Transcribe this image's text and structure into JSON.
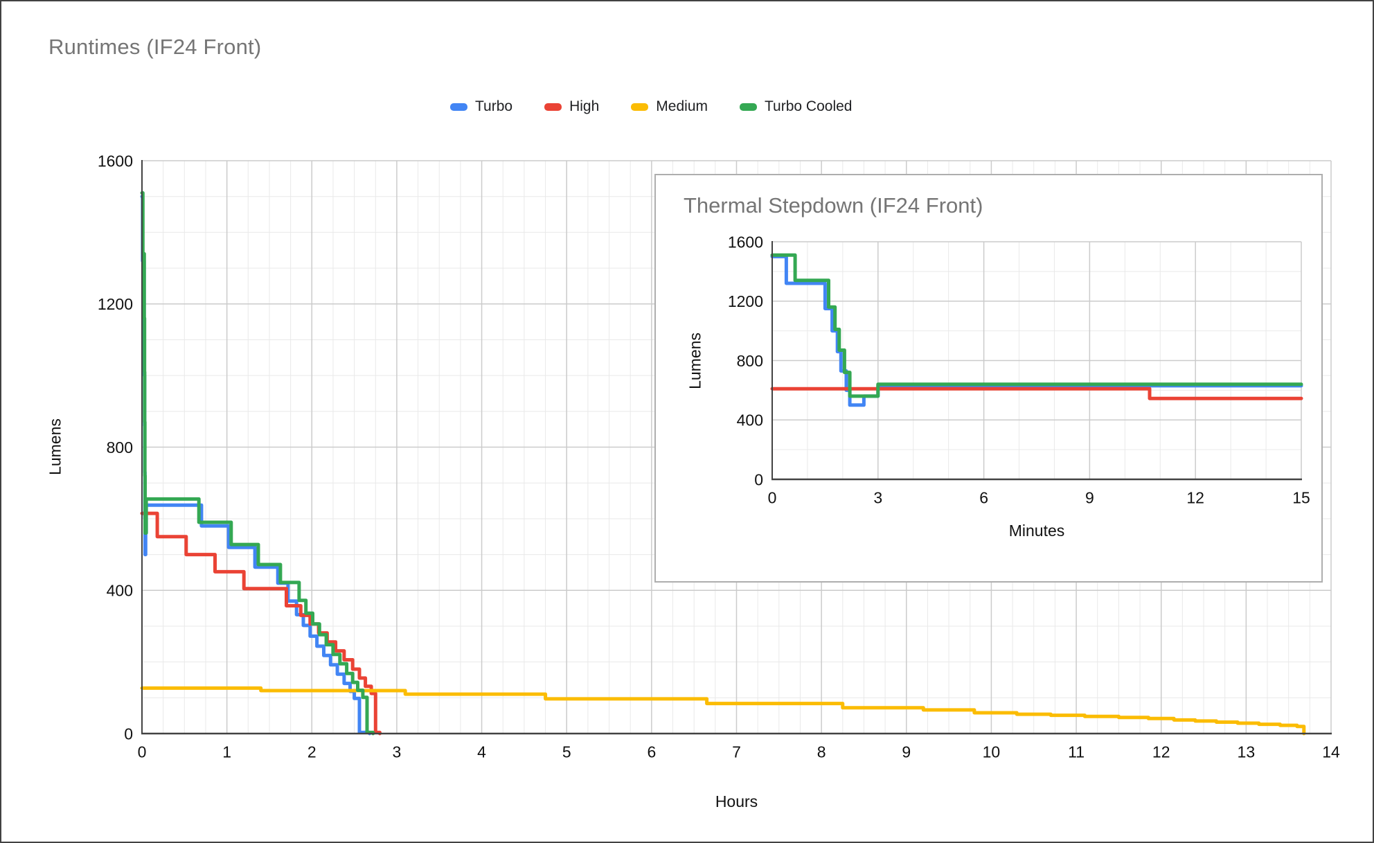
{
  "colors": {
    "turbo": "#4285F4",
    "high": "#EA4335",
    "medium": "#FBBC04",
    "turbo_cooled": "#34A853",
    "title_gray": "#757575",
    "grid_minor": "#e9e9e9",
    "grid_major": "#cbcbcb",
    "axis": "#424242"
  },
  "legend": {
    "items": [
      {
        "label": "Turbo",
        "color": "#4285F4"
      },
      {
        "label": "High",
        "color": "#EA4335"
      },
      {
        "label": "Medium",
        "color": "#FBBC04"
      },
      {
        "label": "Turbo Cooled",
        "color": "#34A853"
      }
    ]
  },
  "chart_data": [
    {
      "type": "line",
      "style": "step",
      "title": "Runtimes (IF24 Front)",
      "xlabel": "Hours",
      "ylabel": "Lumens",
      "xlim": [
        0,
        14
      ],
      "ylim": [
        0,
        1600
      ],
      "xticks": [
        0,
        1,
        2,
        3,
        4,
        5,
        6,
        7,
        8,
        9,
        10,
        11,
        12,
        13,
        14
      ],
      "yticks": [
        0,
        400,
        800,
        1200,
        1600
      ],
      "grid": {
        "x_minor": 0.25,
        "x_major": 1,
        "y_minor": 100,
        "y_major": 400
      },
      "legend_position": "top",
      "series": [
        {
          "name": "Turbo",
          "color": "#4285F4",
          "points": [
            [
              0,
              1500
            ],
            [
              0.007,
              1500
            ],
            [
              0.007,
              1320
            ],
            [
              0.025,
              1320
            ],
            [
              0.025,
              1150
            ],
            [
              0.028,
              1150
            ],
            [
              0.028,
              1000
            ],
            [
              0.031,
              1000
            ],
            [
              0.031,
              860
            ],
            [
              0.033,
              860
            ],
            [
              0.033,
              730
            ],
            [
              0.035,
              730
            ],
            [
              0.035,
              600
            ],
            [
              0.037,
              600
            ],
            [
              0.037,
              500
            ],
            [
              0.043,
              500
            ],
            [
              0.043,
              560
            ],
            [
              0.05,
              560
            ],
            [
              0.05,
              638
            ],
            [
              0.7,
              638
            ],
            [
              0.7,
              580
            ],
            [
              1.02,
              580
            ],
            [
              1.02,
              520
            ],
            [
              1.33,
              520
            ],
            [
              1.33,
              465
            ],
            [
              1.6,
              465
            ],
            [
              1.6,
              420
            ],
            [
              1.72,
              420
            ],
            [
              1.72,
              370
            ],
            [
              1.82,
              370
            ],
            [
              1.82,
              332
            ],
            [
              1.9,
              332
            ],
            [
              1.9,
              302
            ],
            [
              1.98,
              302
            ],
            [
              1.98,
              272
            ],
            [
              2.06,
              272
            ],
            [
              2.06,
              244
            ],
            [
              2.14,
              244
            ],
            [
              2.14,
              218
            ],
            [
              2.22,
              218
            ],
            [
              2.22,
              192
            ],
            [
              2.3,
              192
            ],
            [
              2.3,
              166
            ],
            [
              2.38,
              166
            ],
            [
              2.38,
              140
            ],
            [
              2.45,
              140
            ],
            [
              2.45,
              118
            ],
            [
              2.5,
              118
            ],
            [
              2.5,
              98
            ],
            [
              2.56,
              98
            ],
            [
              2.56,
              3
            ],
            [
              2.68,
              3
            ],
            [
              2.68,
              0
            ]
          ]
        },
        {
          "name": "High",
          "color": "#EA4335",
          "points": [
            [
              0,
              615
            ],
            [
              0.18,
              615
            ],
            [
              0.18,
              550
            ],
            [
              0.52,
              550
            ],
            [
              0.52,
              500
            ],
            [
              0.86,
              500
            ],
            [
              0.86,
              452
            ],
            [
              1.2,
              452
            ],
            [
              1.2,
              405
            ],
            [
              1.7,
              405
            ],
            [
              1.7,
              357
            ],
            [
              1.87,
              357
            ],
            [
              1.87,
              330
            ],
            [
              1.98,
              330
            ],
            [
              1.98,
              306
            ],
            [
              2.08,
              306
            ],
            [
              2.08,
              281
            ],
            [
              2.18,
              281
            ],
            [
              2.18,
              256
            ],
            [
              2.28,
              256
            ],
            [
              2.28,
              231
            ],
            [
              2.38,
              231
            ],
            [
              2.38,
              206
            ],
            [
              2.48,
              206
            ],
            [
              2.48,
              180
            ],
            [
              2.56,
              180
            ],
            [
              2.56,
              155
            ],
            [
              2.63,
              155
            ],
            [
              2.63,
              132
            ],
            [
              2.7,
              132
            ],
            [
              2.7,
              112
            ],
            [
              2.75,
              112
            ],
            [
              2.75,
              3
            ],
            [
              2.8,
              3
            ],
            [
              2.8,
              0
            ]
          ]
        },
        {
          "name": "Medium",
          "color": "#FBBC04",
          "points": [
            [
              0,
              127
            ],
            [
              1.4,
              127
            ],
            [
              1.4,
              120
            ],
            [
              3.1,
              120
            ],
            [
              3.1,
              110
            ],
            [
              4.75,
              110
            ],
            [
              4.75,
              97
            ],
            [
              6.65,
              97
            ],
            [
              6.65,
              84
            ],
            [
              8.25,
              84
            ],
            [
              8.25,
              72
            ],
            [
              9.2,
              72
            ],
            [
              9.2,
              66
            ],
            [
              9.8,
              66
            ],
            [
              9.8,
              58
            ],
            [
              10.3,
              58
            ],
            [
              10.3,
              54
            ],
            [
              10.7,
              54
            ],
            [
              10.7,
              51
            ],
            [
              11.1,
              51
            ],
            [
              11.1,
              48
            ],
            [
              11.5,
              48
            ],
            [
              11.5,
              45
            ],
            [
              11.85,
              45
            ],
            [
              11.85,
              42
            ],
            [
              12.15,
              42
            ],
            [
              12.15,
              38
            ],
            [
              12.4,
              38
            ],
            [
              12.4,
              35
            ],
            [
              12.65,
              35
            ],
            [
              12.65,
              32
            ],
            [
              12.9,
              32
            ],
            [
              12.9,
              29
            ],
            [
              13.15,
              29
            ],
            [
              13.15,
              26
            ],
            [
              13.4,
              26
            ],
            [
              13.4,
              23
            ],
            [
              13.6,
              23
            ],
            [
              13.6,
              20
            ],
            [
              13.68,
              20
            ],
            [
              13.68,
              0
            ]
          ]
        },
        {
          "name": "Turbo Cooled",
          "color": "#34A853",
          "points": [
            [
              0,
              1510
            ],
            [
              0.011,
              1510
            ],
            [
              0.011,
              1340
            ],
            [
              0.027,
              1340
            ],
            [
              0.027,
              1160
            ],
            [
              0.03,
              1160
            ],
            [
              0.03,
              1010
            ],
            [
              0.032,
              1010
            ],
            [
              0.032,
              870
            ],
            [
              0.034,
              870
            ],
            [
              0.034,
              720
            ],
            [
              0.037,
              720
            ],
            [
              0.037,
              560
            ],
            [
              0.05,
              560
            ],
            [
              0.05,
              655
            ],
            [
              0.67,
              655
            ],
            [
              0.67,
              590
            ],
            [
              1.05,
              590
            ],
            [
              1.05,
              528
            ],
            [
              1.37,
              528
            ],
            [
              1.37,
              472
            ],
            [
              1.63,
              472
            ],
            [
              1.63,
              422
            ],
            [
              1.85,
              422
            ],
            [
              1.85,
              372
            ],
            [
              1.93,
              372
            ],
            [
              1.93,
              336
            ],
            [
              2.01,
              336
            ],
            [
              2.01,
              306
            ],
            [
              2.09,
              306
            ],
            [
              2.09,
              276
            ],
            [
              2.17,
              276
            ],
            [
              2.17,
              248
            ],
            [
              2.25,
              248
            ],
            [
              2.25,
              221
            ],
            [
              2.33,
              221
            ],
            [
              2.33,
              195
            ],
            [
              2.41,
              195
            ],
            [
              2.41,
              168
            ],
            [
              2.48,
              168
            ],
            [
              2.48,
              143
            ],
            [
              2.54,
              143
            ],
            [
              2.54,
              121
            ],
            [
              2.6,
              121
            ],
            [
              2.6,
              101
            ],
            [
              2.65,
              101
            ],
            [
              2.65,
              3
            ],
            [
              2.72,
              3
            ],
            [
              2.72,
              0
            ]
          ]
        }
      ]
    },
    {
      "type": "line",
      "style": "step",
      "title": "Thermal Stepdown (IF24 Front)",
      "xlabel": "Minutes",
      "ylabel": "Lumens",
      "xlim": [
        0,
        15
      ],
      "ylim": [
        0,
        1600
      ],
      "xticks": [
        0,
        3,
        6,
        9,
        12,
        15
      ],
      "yticks": [
        0,
        400,
        800,
        1200,
        1600
      ],
      "grid": {
        "x_minor": 1,
        "x_major": 3,
        "y_minor": 200,
        "y_major": 400
      },
      "legend_position": "none",
      "series": [
        {
          "name": "Turbo",
          "color": "#4285F4",
          "points": [
            [
              0,
              1500
            ],
            [
              0.4,
              1500
            ],
            [
              0.4,
              1320
            ],
            [
              1.5,
              1320
            ],
            [
              1.5,
              1150
            ],
            [
              1.7,
              1150
            ],
            [
              1.7,
              1000
            ],
            [
              1.85,
              1000
            ],
            [
              1.85,
              860
            ],
            [
              1.95,
              860
            ],
            [
              1.95,
              730
            ],
            [
              2.1,
              730
            ],
            [
              2.1,
              600
            ],
            [
              2.2,
              600
            ],
            [
              2.2,
              500
            ],
            [
              2.6,
              500
            ],
            [
              2.6,
              560
            ],
            [
              3,
              560
            ],
            [
              3,
              630
            ],
            [
              15,
              630
            ]
          ]
        },
        {
          "name": "High",
          "color": "#EA4335",
          "points": [
            [
              0,
              610
            ],
            [
              10.7,
              610
            ],
            [
              10.7,
              545
            ],
            [
              15,
              545
            ]
          ]
        },
        {
          "name": "Turbo Cooled",
          "color": "#34A853",
          "points": [
            [
              0,
              1510
            ],
            [
              0.65,
              1510
            ],
            [
              0.65,
              1340
            ],
            [
              1.6,
              1340
            ],
            [
              1.6,
              1160
            ],
            [
              1.78,
              1160
            ],
            [
              1.78,
              1010
            ],
            [
              1.9,
              1010
            ],
            [
              1.9,
              870
            ],
            [
              2.05,
              870
            ],
            [
              2.05,
              720
            ],
            [
              2.2,
              720
            ],
            [
              2.2,
              560
            ],
            [
              3,
              560
            ],
            [
              3,
              640
            ],
            [
              15,
              640
            ]
          ]
        }
      ]
    }
  ]
}
